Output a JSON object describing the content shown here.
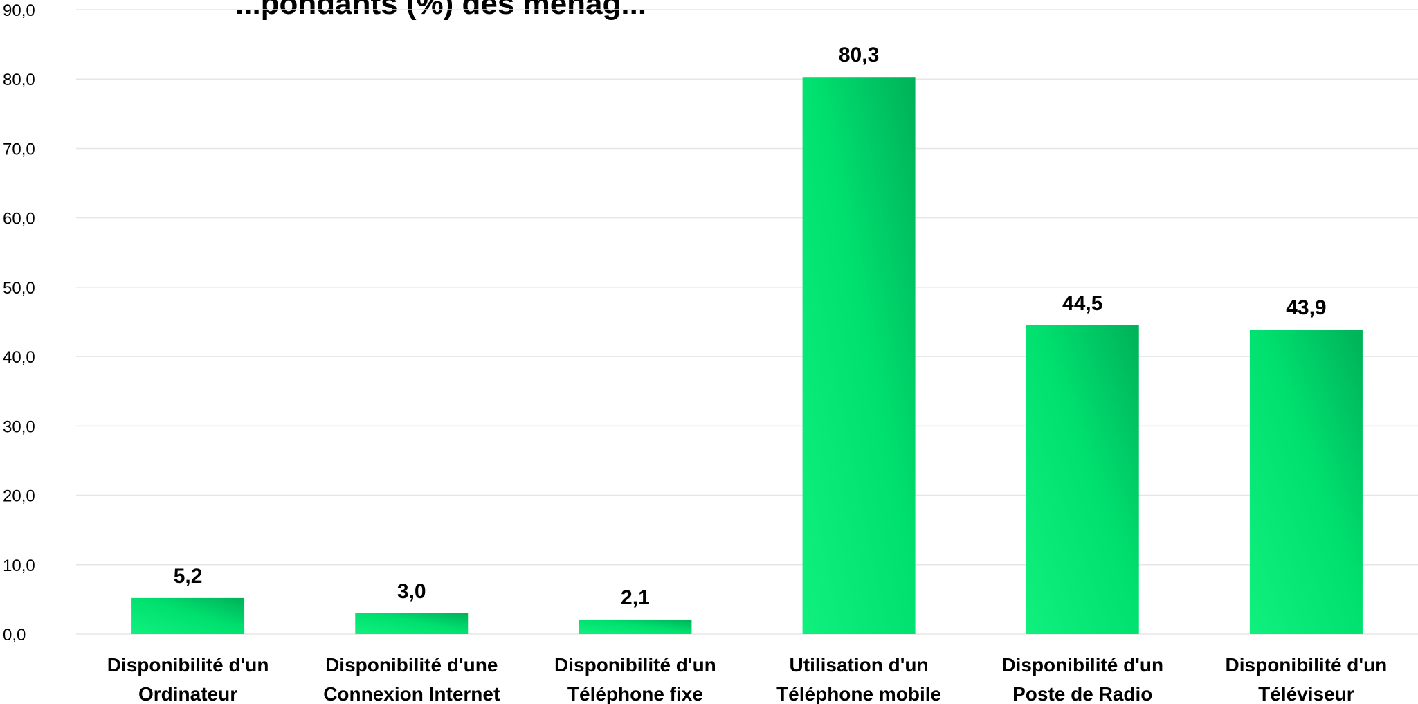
{
  "chart_data": {
    "type": "bar",
    "title": "",
    "title_partial": "...pondants (%) des ménag...",
    "xlabel": "",
    "ylabel": "",
    "ylim": [
      0,
      90
    ],
    "yticks": [
      "0,0",
      "10,0",
      "20,0",
      "30,0",
      "40,0",
      "50,0",
      "60,0",
      "70,0",
      "80,0",
      "90,0"
    ],
    "grid": true,
    "categories": [
      [
        "Disponibilité d'un",
        "Ordinateur"
      ],
      [
        "Disponibilité d'une",
        "Connexion Internet"
      ],
      [
        "Disponibilité d'un",
        "Téléphone fixe"
      ],
      [
        "Utilisation d'un",
        "Téléphone mobile"
      ],
      [
        "Disponibilité d'un",
        "Poste de Radio"
      ],
      [
        "Disponibilité d'un",
        "Téléviseur"
      ]
    ],
    "values": [
      5.2,
      3.0,
      2.1,
      80.3,
      44.5,
      43.9
    ],
    "data_labels": [
      "5,2",
      "3,0",
      "2,1",
      "80,3",
      "44,5",
      "43,9"
    ],
    "colors": {
      "bar_light": "#0ff07d",
      "bar_dark": "#00b159",
      "grid": "#e6e6e6"
    }
  }
}
